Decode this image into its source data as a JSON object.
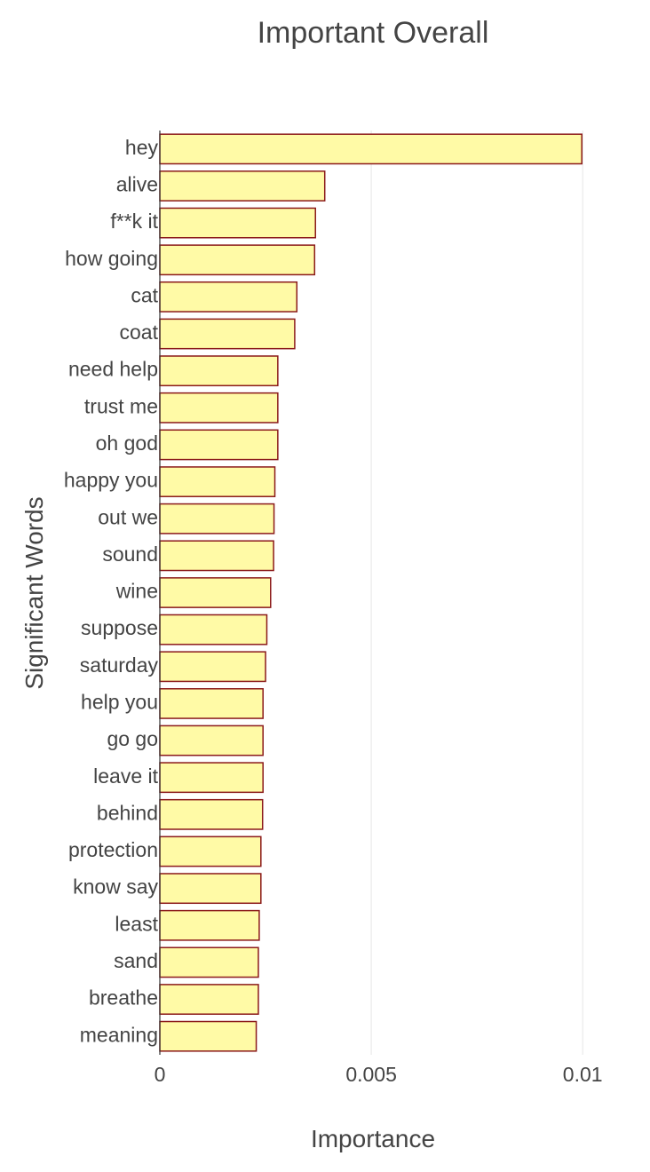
{
  "chart_data": {
    "type": "bar",
    "orientation": "horizontal",
    "title": "Important Overall",
    "xlabel": "Importance",
    "ylabel": "Significant Words",
    "xlim": [
      0,
      0.0105
    ],
    "xticks": [
      0,
      0.005,
      0.01
    ],
    "xtick_labels": [
      "0",
      "0.005",
      "0.01"
    ],
    "grid": true,
    "categories": [
      "hey",
      "alive",
      "f**k it",
      "how going",
      "cat",
      "coat",
      "need help",
      "trust me",
      "oh god",
      "happy you",
      "out we",
      "sound",
      "wine",
      "suppose",
      "saturday",
      "help you",
      "go go",
      "leave it",
      "behind",
      "protection",
      "know say",
      "least",
      "sand",
      "breathe",
      "meaning"
    ],
    "values": [
      0.00998,
      0.0039,
      0.00368,
      0.00366,
      0.00324,
      0.00319,
      0.00279,
      0.00279,
      0.00279,
      0.00272,
      0.0027,
      0.00269,
      0.00262,
      0.00253,
      0.0025,
      0.00244,
      0.00244,
      0.00244,
      0.00243,
      0.00239,
      0.00239,
      0.00235,
      0.00233,
      0.00233,
      0.00228
    ],
    "colors": {
      "bar_fill": "#FFFAA6",
      "bar_stroke": "#8B1A1A",
      "text": "#444444",
      "grid": "#e6e6e6",
      "axis": "#333333"
    }
  }
}
